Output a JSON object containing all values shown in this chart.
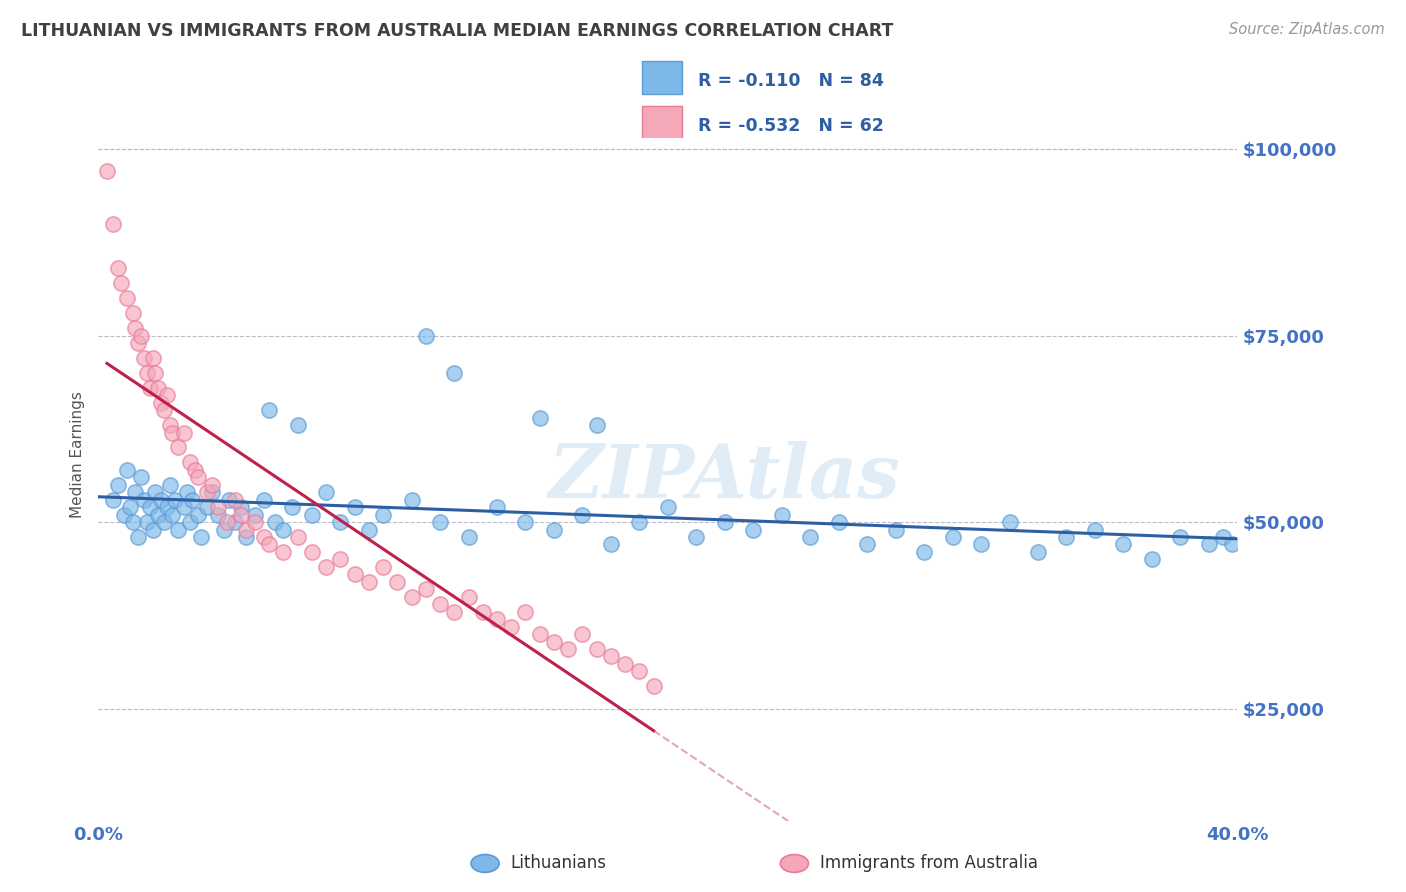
{
  "title": "LITHUANIAN VS IMMIGRANTS FROM AUSTRALIA MEDIAN EARNINGS CORRELATION CHART",
  "source": "Source: ZipAtlas.com",
  "ylabel": "Median Earnings",
  "xlim": [
    0.0,
    0.4
  ],
  "ylim": [
    10000,
    108000
  ],
  "yticks": [
    25000,
    50000,
    75000,
    100000
  ],
  "ytick_labels": [
    "$25,000",
    "$50,000",
    "$75,000",
    "$100,000"
  ],
  "xticks": [
    0.0,
    0.05,
    0.1,
    0.15,
    0.2,
    0.25,
    0.3,
    0.35,
    0.4
  ],
  "blue_color": "#7DB8E8",
  "pink_color": "#F4A8B8",
  "blue_edge_color": "#5B9BD5",
  "pink_edge_color": "#E87A9A",
  "blue_line_color": "#2E5FA3",
  "pink_line_color": "#C0204A",
  "R_blue": -0.11,
  "N_blue": 84,
  "R_pink": -0.532,
  "N_pink": 62,
  "legend_label_blue": "Lithuanians",
  "legend_label_pink": "Immigrants from Australia",
  "watermark": "ZIPAtlas",
  "title_color": "#404040",
  "axis_color": "#4472C4",
  "legend_text_color": "#2E5FA3",
  "blue_scatter_x": [
    0.005,
    0.007,
    0.009,
    0.01,
    0.011,
    0.012,
    0.013,
    0.014,
    0.015,
    0.016,
    0.017,
    0.018,
    0.019,
    0.02,
    0.021,
    0.022,
    0.023,
    0.024,
    0.025,
    0.026,
    0.027,
    0.028,
    0.03,
    0.031,
    0.032,
    0.033,
    0.035,
    0.036,
    0.038,
    0.04,
    0.042,
    0.044,
    0.046,
    0.048,
    0.05,
    0.052,
    0.055,
    0.058,
    0.06,
    0.062,
    0.065,
    0.068,
    0.07,
    0.075,
    0.08,
    0.085,
    0.09,
    0.095,
    0.1,
    0.11,
    0.12,
    0.13,
    0.14,
    0.15,
    0.16,
    0.17,
    0.18,
    0.19,
    0.2,
    0.21,
    0.22,
    0.23,
    0.24,
    0.25,
    0.26,
    0.27,
    0.28,
    0.29,
    0.3,
    0.31,
    0.32,
    0.33,
    0.34,
    0.35,
    0.36,
    0.37,
    0.38,
    0.39,
    0.395,
    0.398,
    0.115,
    0.125,
    0.155,
    0.175
  ],
  "blue_scatter_y": [
    53000,
    55000,
    51000,
    57000,
    52000,
    50000,
    54000,
    48000,
    56000,
    53000,
    50000,
    52000,
    49000,
    54000,
    51000,
    53000,
    50000,
    52000,
    55000,
    51000,
    53000,
    49000,
    52000,
    54000,
    50000,
    53000,
    51000,
    48000,
    52000,
    54000,
    51000,
    49000,
    53000,
    50000,
    52000,
    48000,
    51000,
    53000,
    65000,
    50000,
    49000,
    52000,
    63000,
    51000,
    54000,
    50000,
    52000,
    49000,
    51000,
    53000,
    50000,
    48000,
    52000,
    50000,
    49000,
    51000,
    47000,
    50000,
    52000,
    48000,
    50000,
    49000,
    51000,
    48000,
    50000,
    47000,
    49000,
    46000,
    48000,
    47000,
    50000,
    46000,
    48000,
    49000,
    47000,
    45000,
    48000,
    47000,
    48000,
    47000,
    75000,
    70000,
    64000,
    63000
  ],
  "pink_scatter_x": [
    0.003,
    0.005,
    0.007,
    0.008,
    0.01,
    0.012,
    0.013,
    0.014,
    0.015,
    0.016,
    0.017,
    0.018,
    0.019,
    0.02,
    0.021,
    0.022,
    0.023,
    0.024,
    0.025,
    0.026,
    0.028,
    0.03,
    0.032,
    0.034,
    0.035,
    0.038,
    0.04,
    0.042,
    0.045,
    0.048,
    0.05,
    0.052,
    0.055,
    0.058,
    0.06,
    0.065,
    0.07,
    0.075,
    0.08,
    0.085,
    0.09,
    0.095,
    0.1,
    0.105,
    0.11,
    0.115,
    0.12,
    0.125,
    0.13,
    0.135,
    0.14,
    0.145,
    0.15,
    0.155,
    0.16,
    0.165,
    0.17,
    0.175,
    0.18,
    0.185,
    0.19,
    0.195
  ],
  "pink_scatter_y": [
    97000,
    90000,
    84000,
    82000,
    80000,
    78000,
    76000,
    74000,
    75000,
    72000,
    70000,
    68000,
    72000,
    70000,
    68000,
    66000,
    65000,
    67000,
    63000,
    62000,
    60000,
    62000,
    58000,
    57000,
    56000,
    54000,
    55000,
    52000,
    50000,
    53000,
    51000,
    49000,
    50000,
    48000,
    47000,
    46000,
    48000,
    46000,
    44000,
    45000,
    43000,
    42000,
    44000,
    42000,
    40000,
    41000,
    39000,
    38000,
    40000,
    38000,
    37000,
    36000,
    38000,
    35000,
    34000,
    33000,
    35000,
    33000,
    32000,
    31000,
    30000,
    28000
  ]
}
